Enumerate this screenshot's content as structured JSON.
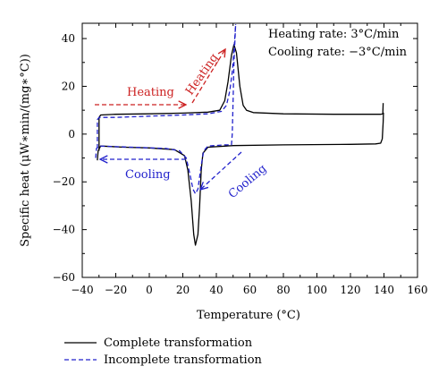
{
  "chart_data": {
    "type": "line",
    "title": "",
    "xlabel": "Temperature (°C)",
    "ylabel": "Specific heat (μW∗min/(mg∗°C))",
    "xlim": [
      -40,
      160
    ],
    "ylim": [
      -60,
      45
    ],
    "xticks": [
      -40,
      -20,
      0,
      20,
      40,
      60,
      80,
      100,
      120,
      140,
      160
    ],
    "yticks": [
      -60,
      -40,
      -20,
      0,
      20,
      40
    ],
    "xtick_labels": [
      "−40",
      "−20",
      "0",
      "20",
      "40",
      "60",
      "80",
      "100",
      "120",
      "140",
      "160"
    ],
    "ytick_labels": [
      "−60",
      "−40",
      "−20",
      "0",
      "20",
      "40"
    ],
    "grid": false,
    "legend_position": "bottom-left",
    "series": [
      {
        "name": "Complete transformation",
        "style": "solid",
        "color": "#000000",
        "segments": [
          [
            [
              -30,
              -7
            ],
            [
              -30,
              7
            ],
            [
              -29,
              8
            ],
            [
              -20,
              8.3
            ],
            [
              0,
              8.5
            ],
            [
              20,
              8.8
            ],
            [
              35,
              9.2
            ],
            [
              42,
              10
            ],
            [
              45,
              14
            ],
            [
              47,
              22
            ],
            [
              49,
              33
            ],
            [
              50.5,
              37.5
            ],
            [
              52,
              34
            ],
            [
              54,
              20
            ],
            [
              56,
              12
            ],
            [
              58,
              10
            ],
            [
              62,
              9
            ],
            [
              80,
              8.5
            ],
            [
              110,
              8.3
            ],
            [
              138,
              8.3
            ],
            [
              139.3,
              8.5
            ],
            [
              139.5,
              13
            ]
          ],
          [
            [
              -31,
              -11
            ],
            [
              -30.5,
              -7
            ],
            [
              -29,
              -5
            ],
            [
              -15,
              -5.5
            ],
            [
              0,
              -5.8
            ],
            [
              15,
              -6.5
            ],
            [
              21,
              -9
            ],
            [
              23,
              -15
            ],
            [
              25,
              -28
            ],
            [
              26.5,
              -42
            ],
            [
              27.5,
              -46.5
            ],
            [
              29,
              -42
            ],
            [
              30,
              -30
            ],
            [
              31,
              -15
            ],
            [
              32,
              -8
            ],
            [
              35,
              -5.5
            ],
            [
              50,
              -4.8
            ],
            [
              80,
              -4.5
            ],
            [
              120,
              -4.3
            ],
            [
              135,
              -4.1
            ],
            [
              138,
              -3.8
            ],
            [
              139,
              -2
            ],
            [
              139.5,
              5
            ],
            [
              139.7,
              9
            ]
          ]
        ]
      },
      {
        "name": "Incomplete transformation",
        "style": "dashed",
        "color": "#2222cc",
        "segments": [
          [
            [
              -31,
              -6
            ],
            [
              -31,
              6
            ],
            [
              -30,
              7
            ],
            [
              -20,
              7
            ],
            [
              0,
              7.5
            ],
            [
              20,
              8
            ],
            [
              35,
              8.5
            ],
            [
              43,
              9.5
            ],
            [
              46,
              12
            ],
            [
              48,
              18
            ],
            [
              49.5,
              26
            ],
            [
              50.5,
              35
            ],
            [
              51.5,
              46
            ]
          ],
          [
            [
              -32,
              -10
            ],
            [
              -31.5,
              -6
            ],
            [
              -30,
              -5
            ],
            [
              -10,
              -5.5
            ],
            [
              10,
              -6
            ],
            [
              18,
              -7
            ],
            [
              22,
              -10
            ],
            [
              24,
              -16
            ],
            [
              26,
              -23
            ],
            [
              27.5,
              -25
            ],
            [
              29,
              -23
            ],
            [
              31,
              -13
            ],
            [
              32.5,
              -7
            ],
            [
              35,
              -5
            ],
            [
              45,
              -4.5
            ],
            [
              49,
              -4.5
            ],
            [
              49.5,
              0
            ],
            [
              50,
              15
            ],
            [
              50.5,
              30
            ],
            [
              51.5,
              46
            ]
          ]
        ]
      }
    ],
    "annotations": [
      {
        "text": "Heating",
        "color": "#cc2222",
        "arrow": "right",
        "x": -20,
        "y": 18
      },
      {
        "text": "Heating",
        "color": "#cc2222",
        "arrow": "up-right",
        "x": 40,
        "y": 28
      },
      {
        "text": "Cooling",
        "color": "#2222cc",
        "arrow": "left",
        "x": -10,
        "y": -10
      },
      {
        "text": "Cooling",
        "color": "#2222cc",
        "arrow": "down-left",
        "x": 45,
        "y": -15
      }
    ],
    "info": {
      "heating_rate": "Heating rate: 3°C/min",
      "cooling_rate": "Cooling rate: −3°C/min"
    }
  }
}
